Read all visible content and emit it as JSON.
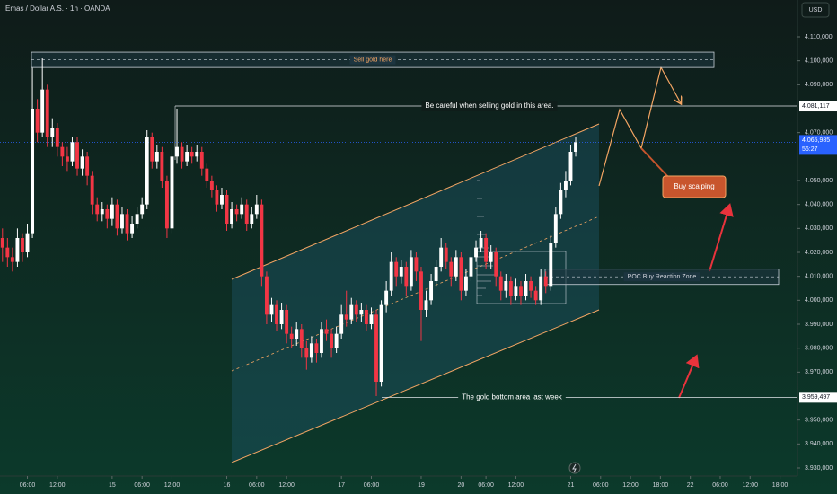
{
  "header": {
    "symbol": "Emas / Dollar A.S. · 1h · OANDA",
    "currency": "USD"
  },
  "chart_data": {
    "type": "candlestick",
    "up_color": "#ffffff",
    "down_color": "#f23645",
    "ylim": [
      3926625,
      4125375
    ],
    "yticks": [
      {
        "value": 4110000,
        "label": "4.110,000"
      },
      {
        "value": 4100000,
        "label": "4.100,000"
      },
      {
        "value": 4090000,
        "label": "4.090,000"
      },
      {
        "value": 4070000,
        "label": "4.070,000"
      },
      {
        "value": 4050000,
        "label": "4.050,000"
      },
      {
        "value": 4040000,
        "label": "4.040,000"
      },
      {
        "value": 4030000,
        "label": "4.030,000"
      },
      {
        "value": 4020000,
        "label": "4.020,000"
      },
      {
        "value": 4010000,
        "label": "4.010,000"
      },
      {
        "value": 4000000,
        "label": "4.000,000"
      },
      {
        "value": 3990000,
        "label": "3.990,000"
      },
      {
        "value": 3980000,
        "label": "3.980,000"
      },
      {
        "value": 3970000,
        "label": "3.970,000"
      },
      {
        "value": 3950000,
        "label": "3.950,000"
      },
      {
        "value": 3940000,
        "label": "3.940,000"
      },
      {
        "value": 3930000,
        "label": "3.930,000"
      }
    ],
    "xlim": [
      -0.5,
      159.5
    ],
    "xticks": [
      {
        "value": 5,
        "label": "06:00"
      },
      {
        "value": 11,
        "label": "12:00"
      },
      {
        "value": 22,
        "label": "15"
      },
      {
        "value": 28,
        "label": "06:00"
      },
      {
        "value": 34,
        "label": "12:00"
      },
      {
        "value": 45,
        "label": "16"
      },
      {
        "value": 51,
        "label": "06:00"
      },
      {
        "value": 57,
        "label": "12:00"
      },
      {
        "value": 68,
        "label": "17"
      },
      {
        "value": 74,
        "label": "06:00"
      },
      {
        "value": 84,
        "label": "19"
      },
      {
        "value": 92,
        "label": "20"
      },
      {
        "value": 97,
        "label": "06:00"
      },
      {
        "value": 103,
        "label": "12:00"
      },
      {
        "value": 114,
        "label": "21"
      },
      {
        "value": 120,
        "label": "06:00"
      },
      {
        "value": 126,
        "label": "12:00"
      },
      {
        "value": 132,
        "label": "18:00"
      },
      {
        "value": 138,
        "label": "22"
      },
      {
        "value": 144,
        "label": "06:00"
      },
      {
        "value": 150,
        "label": "12:00"
      },
      {
        "value": 156,
        "label": "18:00"
      }
    ],
    "open": [
      4026000,
      4022000,
      4018000,
      4016000,
      4026000,
      4020000,
      4028000,
      4080000,
      4070000,
      4088000,
      4068000,
      4072000,
      4064000,
      4060000,
      4058000,
      4066000,
      4055000,
      4060000,
      4052000,
      4040000,
      4036000,
      4038000,
      4034000,
      4040000,
      4030000,
      4036000,
      4028000,
      4032000,
      4036000,
      4040000,
      4068000,
      4058000,
      4062000,
      4050000,
      4030000,
      4060000,
      4064000,
      4058000,
      4062000,
      4060000,
      4062000,
      4055000,
      4050000,
      4046000,
      4040000,
      4044000,
      4032000,
      4038000,
      4036000,
      4040000,
      4032000,
      4036000,
      4040000,
      4010000,
      3994000,
      3998000,
      3990000,
      3996000,
      3986000,
      3984000,
      3988000,
      3980000,
      3976000,
      3982000,
      3978000,
      3988000,
      3986000,
      3980000,
      3986000,
      3994000,
      3992000,
      3998000,
      3994000,
      3996000,
      3990000,
      3994000,
      3966000,
      3998000,
      4004000,
      4016000,
      4010000,
      4014000,
      4006000,
      4018000,
      4012000,
      3996000,
      4000000,
      4008000,
      4014000,
      4022000,
      4016000,
      4010000,
      4018000,
      4004000,
      4010000,
      4018000,
      4022000,
      4026000,
      4016000,
      4020000,
      4010000,
      4004000,
      4008000,
      4002000,
      4006000,
      4002000,
      4008000,
      4004000,
      4000000,
      4010000,
      4006000,
      4024000,
      4036000,
      4046000,
      4050000,
      4062000
    ],
    "high": [
      4030000,
      4026000,
      4022000,
      4030000,
      4028000,
      4032000,
      4097000,
      4084000,
      4101000,
      4090000,
      4076000,
      4074000,
      4066000,
      4064000,
      4068000,
      4068000,
      4063000,
      4062000,
      4054000,
      4043000,
      4041000,
      4040000,
      4043000,
      4042000,
      4039000,
      4038000,
      4035000,
      4039000,
      4043000,
      4071000,
      4070000,
      4065000,
      4064000,
      4052000,
      4063000,
      4080000,
      4066000,
      4065000,
      4064000,
      4065000,
      4064000,
      4057000,
      4052000,
      4048000,
      4047000,
      4046000,
      4041000,
      4040000,
      4043000,
      4042000,
      4039000,
      4044000,
      4042000,
      4012000,
      4001000,
      4000000,
      3999000,
      3998000,
      3989000,
      3991000,
      3990000,
      3983000,
      3985000,
      3984000,
      3991000,
      3992000,
      3988000,
      3989000,
      3998000,
      4004000,
      4001000,
      4000000,
      3999000,
      3998000,
      3997000,
      3996000,
      4000000,
      4008000,
      4020000,
      4018000,
      4017000,
      4016000,
      4021000,
      4020000,
      4014000,
      4004000,
      4011000,
      4017000,
      4026000,
      4024000,
      4018000,
      4021000,
      4020000,
      4013000,
      4021000,
      4025000,
      4029000,
      4028000,
      4023000,
      4022000,
      4012000,
      4011000,
      4010000,
      4009000,
      4008000,
      4011000,
      4010000,
      4006000,
      4013000,
      4012000,
      4027000,
      4039000,
      4049000,
      4054000,
      4065000,
      4068000
    ],
    "low": [
      4016000,
      4014000,
      4012000,
      4014000,
      4016000,
      4018000,
      4026000,
      4066000,
      4068000,
      4064000,
      4064000,
      4060000,
      4056000,
      4054000,
      4056000,
      4052000,
      4052000,
      4048000,
      4036000,
      4033000,
      4033000,
      4030000,
      4031000,
      4027000,
      4028000,
      4025000,
      4026000,
      4030000,
      4034000,
      4038000,
      4055000,
      4055000,
      4047000,
      4026000,
      4028000,
      4057000,
      4055000,
      4056000,
      4057000,
      4058000,
      4052000,
      4047000,
      4043000,
      4037000,
      4038000,
      4029000,
      4030000,
      4033000,
      4034000,
      4029000,
      4030000,
      4034000,
      4006000,
      3990000,
      3991000,
      3987000,
      3988000,
      3982000,
      3980000,
      3981000,
      3976000,
      3971000,
      3974000,
      3974000,
      3976000,
      3983000,
      3976000,
      3978000,
      3984000,
      3989000,
      3990000,
      3991000,
      3991000,
      3987000,
      3988000,
      3960000,
      3964000,
      3995000,
      4002000,
      4006000,
      4007000,
      4002000,
      4004000,
      4008000,
      3983000,
      3993000,
      3998000,
      4006000,
      4012000,
      4013000,
      4006000,
      4008000,
      4000000,
      4002000,
      4008000,
      4016000,
      4020000,
      4013000,
      4013000,
      4006000,
      4000000,
      4001000,
      3998000,
      4000000,
      3998000,
      4000000,
      4001000,
      3998000,
      3998000,
      4003000,
      4004000,
      4022000,
      4034000,
      4043000,
      4048000,
      4060000
    ],
    "close": [
      4022000,
      4018000,
      4016000,
      4026000,
      4020000,
      4028000,
      4080000,
      4070000,
      4088000,
      4068000,
      4072000,
      4064000,
      4060000,
      4058000,
      4066000,
      4055000,
      4060000,
      4052000,
      4040000,
      4036000,
      4038000,
      4034000,
      4040000,
      4030000,
      4036000,
      4028000,
      4032000,
      4036000,
      4040000,
      4068000,
      4058000,
      4062000,
      4050000,
      4030000,
      4060000,
      4064000,
      4058000,
      4062000,
      4060000,
      4062000,
      4055000,
      4050000,
      4046000,
      4040000,
      4044000,
      4032000,
      4038000,
      4036000,
      4040000,
      4032000,
      4036000,
      4040000,
      4010000,
      3994000,
      3998000,
      3990000,
      3996000,
      3986000,
      3984000,
      3988000,
      3980000,
      3976000,
      3982000,
      3978000,
      3988000,
      3986000,
      3980000,
      3986000,
      3994000,
      3992000,
      3998000,
      3994000,
      3996000,
      3990000,
      3994000,
      3966000,
      3998000,
      4004000,
      4016000,
      4010000,
      4014000,
      4006000,
      4018000,
      4012000,
      3996000,
      4000000,
      4008000,
      4014000,
      4022000,
      4016000,
      4010000,
      4018000,
      4004000,
      4010000,
      4018000,
      4022000,
      4026000,
      4016000,
      4020000,
      4010000,
      4004000,
      4008000,
      4002000,
      4006000,
      4002000,
      4008000,
      4004000,
      4000000,
      4010000,
      4006000,
      4024000,
      4036000,
      4046000,
      4050000,
      4062000,
      4065985
    ],
    "current_price": {
      "value": 4065985,
      "label": "4.065,985",
      "countdown": "56:27"
    },
    "levels": [
      {
        "text": "Be careful when selling gold in this area.",
        "price": {
          "value": 4081117,
          "label": "4.081,117"
        }
      },
      {
        "text": "The gold bottom area last week",
        "price": {
          "value": 3959497,
          "label": "3.959,497"
        }
      }
    ],
    "zones": [
      {
        "text": "Sell gold here",
        "range": [
          4103600,
          4097200
        ]
      },
      {
        "text": "POC Buy Reaction Zone",
        "range": [
          4013000,
          4006600
        ]
      }
    ],
    "callout": "Buy scalping"
  }
}
